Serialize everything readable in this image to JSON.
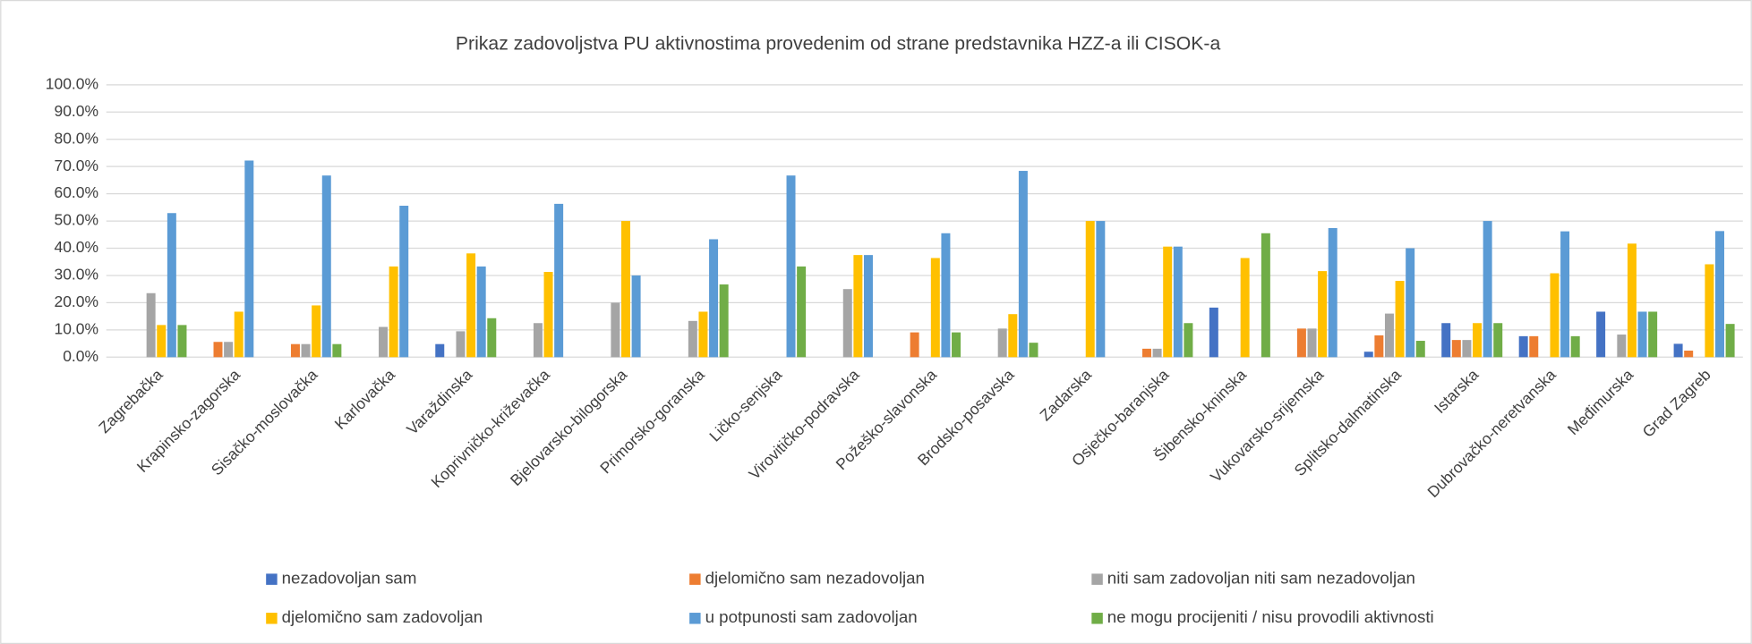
{
  "chart_data": {
    "type": "bar",
    "title": "Prikaz zadovoljstva PU aktivnostima provedenim od strane predstavnika HZZ-a ili CISOK-a",
    "categories": [
      "Zagrebačka",
      "Krapinsko-zagorska",
      "Sisačko-moslovačka",
      "Karlovačka",
      "Varaždinska",
      "Koprivničko-križevačka",
      "Bjelovarsko-bilogorska",
      "Primorsko-goranska",
      "Ličko-senjska",
      "Virovitičko-podravska",
      "Požeško-slavonska",
      "Brodsko-posavska",
      "Zadarska",
      "Osječko-baranjska",
      "Šibensko-kninska",
      "Vukovarsko-srijemska",
      "Splitsko-dalmatinska",
      "Istarska",
      "Dubrovačko-neretvanska",
      "Međimurska",
      "Grad Zagreb"
    ],
    "series": [
      {
        "name": "nezadovoljan sam",
        "color": "#4472c4",
        "values": [
          0,
          0,
          0,
          0,
          4.8,
          0,
          0,
          0,
          0,
          0,
          0,
          0,
          0,
          0,
          18.2,
          0,
          2,
          12.5,
          7.7,
          16.7,
          4.9
        ]
      },
      {
        "name": "djelomično sam nezadovoljan",
        "color": "#ed7d31",
        "values": [
          0,
          5.6,
          4.8,
          0,
          0,
          0,
          0,
          0,
          0,
          0,
          9.1,
          0,
          0,
          3.1,
          0,
          10.5,
          8,
          6.3,
          7.7,
          0,
          2.4
        ]
      },
      {
        "name": "niti sam zadovoljan niti sam nezadovoljan",
        "color": "#a5a5a5",
        "values": [
          23.5,
          5.6,
          4.8,
          11.1,
          9.5,
          12.5,
          20,
          13.3,
          0,
          25,
          0,
          10.5,
          0,
          3.1,
          0,
          10.5,
          16,
          6.3,
          0,
          8.3,
          0
        ]
      },
      {
        "name": "djelomično sam zadovoljan",
        "color": "#ffc000",
        "values": [
          11.8,
          16.7,
          19,
          33.3,
          38.1,
          31.3,
          50,
          16.7,
          0,
          37.5,
          36.4,
          15.8,
          50,
          40.6,
          36.4,
          31.6,
          28,
          12.5,
          30.8,
          41.7,
          34.1
        ]
      },
      {
        "name": "u potpunosti sam zadovoljan",
        "color": "#5b9bd5",
        "values": [
          52.9,
          72.2,
          66.7,
          55.6,
          33.3,
          56.3,
          30,
          43.3,
          66.7,
          37.5,
          45.5,
          68.4,
          50,
          40.6,
          0,
          47.4,
          40,
          50,
          46.2,
          16.7,
          46.3
        ]
      },
      {
        "name": "ne mogu procijeniti / nisu provodili aktivnosti",
        "color": "#70ad47",
        "values": [
          11.8,
          0,
          4.8,
          0,
          14.3,
          0,
          0,
          26.7,
          33.3,
          0,
          9.1,
          5.3,
          0,
          12.5,
          45.5,
          0,
          6,
          12.5,
          7.7,
          16.7,
          12.2
        ]
      }
    ],
    "ylim": [
      0,
      100
    ],
    "yticks": [
      {
        "value": 0,
        "label": "0.0%"
      },
      {
        "value": 10,
        "label": "10.0%"
      },
      {
        "value": 20,
        "label": "20.0%"
      },
      {
        "value": 30,
        "label": "30.0%"
      },
      {
        "value": 40,
        "label": "40.0%"
      },
      {
        "value": 50,
        "label": "50.0%"
      },
      {
        "value": 60,
        "label": "60.0%"
      },
      {
        "value": 70,
        "label": "70.0%"
      },
      {
        "value": 80,
        "label": "80.0%"
      },
      {
        "value": 90,
        "label": "90.0%"
      },
      {
        "value": 100,
        "label": "100.0%"
      }
    ],
    "grid": true,
    "legend": "bottom"
  }
}
